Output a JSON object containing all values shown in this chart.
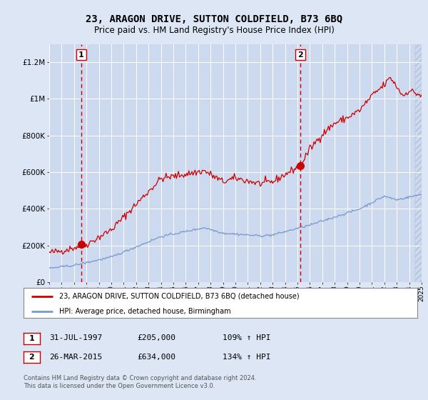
{
  "title": "23, ARAGON DRIVE, SUTTON COLDFIELD, B73 6BQ",
  "subtitle": "Price paid vs. HM Land Registry's House Price Index (HPI)",
  "background_color": "#dce6f5",
  "plot_bg_color": "#ccd9ee",
  "ylim": [
    0,
    1300000
  ],
  "yticks": [
    0,
    200000,
    400000,
    600000,
    800000,
    1000000,
    1200000
  ],
  "ytick_labels": [
    "£0",
    "£200K",
    "£400K",
    "£600K",
    "£800K",
    "£1M",
    "£1.2M"
  ],
  "year_start": 1995,
  "year_end": 2025,
  "sale1_year": 1997.58,
  "sale1_price": 205000,
  "sale2_year": 2015.23,
  "sale2_price": 634000,
  "sale1_label": "1",
  "sale2_label": "2",
  "sale1_date": "31-JUL-1997",
  "sale1_amount": "£205,000",
  "sale1_hpi": "109% ↑ HPI",
  "sale2_date": "26-MAR-2015",
  "sale2_amount": "£634,000",
  "sale2_hpi": "134% ↑ HPI",
  "legend_label1": "23, ARAGON DRIVE, SUTTON COLDFIELD, B73 6BQ (detached house)",
  "legend_label2": "HPI: Average price, detached house, Birmingham",
  "footer": "Contains HM Land Registry data © Crown copyright and database right 2024.\nThis data is licensed under the Open Government Licence v3.0.",
  "line1_color": "#cc0000",
  "line2_color": "#7799cc",
  "grid_color": "#ffffff",
  "vline_color": "#cc0000",
  "hatch_color": "#b0c0d8"
}
